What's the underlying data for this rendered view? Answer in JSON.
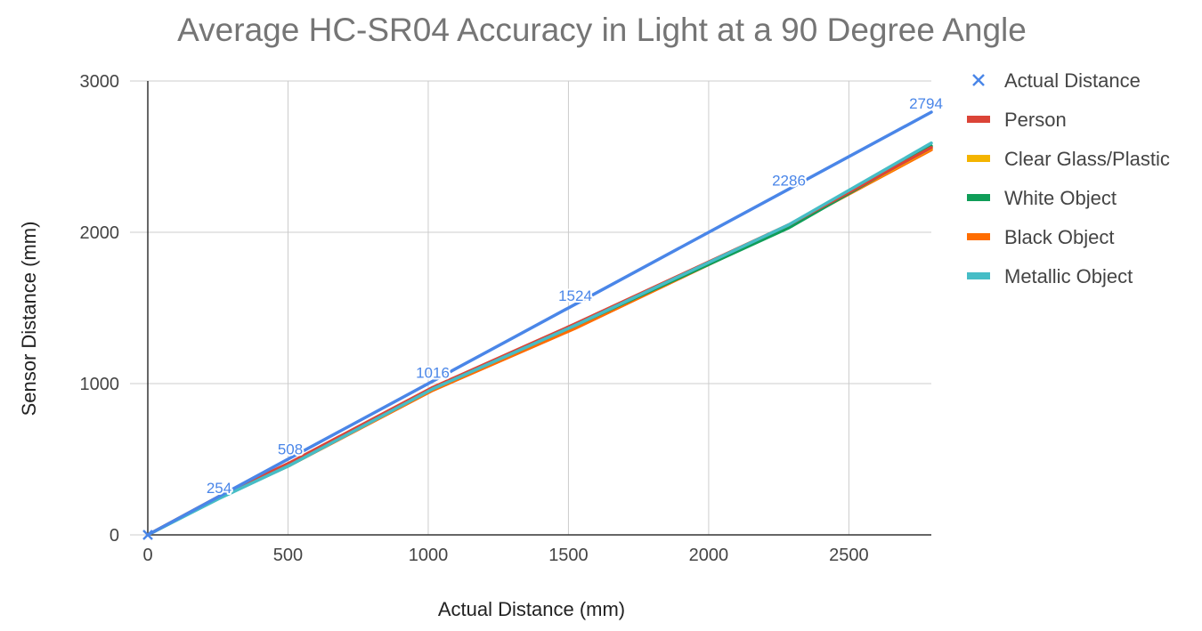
{
  "chart_data": {
    "type": "line",
    "title": "Average HC-SR04 Accuracy in Light at a 90 Degree Angle",
    "xlabel": "Actual Distance (mm)",
    "ylabel": "Sensor Distance (mm)",
    "xlim": [
      0,
      2794
    ],
    "ylim": [
      0,
      3000
    ],
    "xticks": [
      "0",
      "500",
      "1000",
      "1500",
      "2000",
      "2500"
    ],
    "yticks": [
      "0",
      "1000",
      "2000",
      "3000"
    ],
    "grid": true,
    "legend_position": "right",
    "x": [
      0,
      254,
      508,
      1016,
      1524,
      2286,
      2794
    ],
    "series": [
      {
        "name": "Actual Distance",
        "color": "#4a86e8",
        "marker": "x",
        "values": [
          0,
          254,
          508,
          1016,
          1524,
          2286,
          2794
        ],
        "data_labels": [
          "",
          "254",
          "508",
          "1016",
          "1524",
          "2286",
          "2794"
        ]
      },
      {
        "name": "Person",
        "color": "#db4437",
        "values": [
          0,
          254,
          478,
          975,
          1395,
          2050,
          2560
        ]
      },
      {
        "name": "Clear Glass/Plastic",
        "color": "#f4b400",
        "values": [
          0,
          250,
          470,
          972,
          1390,
          2045,
          2555
        ]
      },
      {
        "name": "White Object",
        "color": "#0f9d58",
        "values": [
          0,
          245,
          462,
          968,
          1385,
          2030,
          2570
        ]
      },
      {
        "name": "Black Object",
        "color": "#ff6d00",
        "values": [
          0,
          245,
          462,
          955,
          1365,
          2040,
          2545
        ]
      },
      {
        "name": "Metallic Object",
        "color": "#46bdc6",
        "values": [
          0,
          240,
          462,
          965,
          1385,
          2050,
          2590
        ]
      }
    ]
  }
}
